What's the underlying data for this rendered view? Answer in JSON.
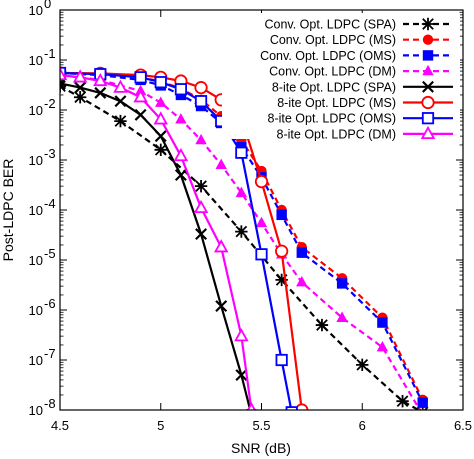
{
  "chart_data": {
    "type": "line",
    "xlabel": "SNR (dB)",
    "ylabel": "Post-LDPC BER",
    "xlim": [
      4.5,
      6.5
    ],
    "ylim": [
      1e-08,
      1
    ],
    "yscale": "log",
    "x_ticks": [
      "4.5",
      "5",
      "5.5",
      "6",
      "6.5"
    ],
    "y_ticks": [
      {
        "base": "10",
        "exp": "-8"
      },
      {
        "base": "10",
        "exp": "-7"
      },
      {
        "base": "10",
        "exp": "-6"
      },
      {
        "base": "10",
        "exp": "-5"
      },
      {
        "base": "10",
        "exp": "-4"
      },
      {
        "base": "10",
        "exp": "-3"
      },
      {
        "base": "10",
        "exp": "-2"
      },
      {
        "base": "10",
        "exp": "-1"
      },
      {
        "base": "10",
        "exp": "0"
      }
    ],
    "grid": false,
    "legend_position": "top-right",
    "series": [
      {
        "name": "Conv. Opt. LDPC (SPA)",
        "color": "#000000",
        "dash": true,
        "marker": "asterisk",
        "x": [
          4.5,
          4.6,
          4.8,
          5.0,
          5.2,
          5.4,
          5.6,
          5.8,
          6.0,
          6.2,
          6.3
        ],
        "y": [
          0.03,
          0.018,
          0.006,
          0.0016,
          0.0003,
          3.7e-05,
          4e-06,
          5e-07,
          8e-08,
          1.5e-08,
          9e-09
        ]
      },
      {
        "name": "Conv. Opt. LDPC (MS)",
        "color": "#ff0000",
        "dash": true,
        "marker": "filled-circle",
        "x": [
          4.5,
          4.7,
          4.9,
          5.0,
          5.1,
          5.2,
          5.3,
          5.4,
          5.5,
          5.6,
          5.7,
          5.9,
          6.1,
          6.3
        ],
        "y": [
          0.055,
          0.052,
          0.045,
          0.037,
          0.027,
          0.016,
          0.0075,
          0.0025,
          0.0006,
          0.0001,
          1.8e-05,
          4.3e-06,
          7e-07,
          1.6e-08
        ]
      },
      {
        "name": "Conv. Opt. LDPC (OMS)",
        "color": "#0000ff",
        "dash": true,
        "marker": "filled-square",
        "x": [
          4.5,
          4.7,
          4.9,
          5.0,
          5.1,
          5.2,
          5.3,
          5.4,
          5.5,
          5.6,
          5.7,
          5.9,
          6.1,
          6.3
        ],
        "y": [
          0.055,
          0.05,
          0.04,
          0.031,
          0.02,
          0.012,
          0.0055,
          0.0018,
          0.00045,
          8e-05,
          1.4e-05,
          3.4e-06,
          5.6e-07,
          1.4e-08
        ]
      },
      {
        "name": "Conv. Opt. LDPC (DM)",
        "color": "#ff00ff",
        "dash": true,
        "marker": "filled-triangle",
        "x": [
          4.5,
          4.7,
          4.9,
          5.0,
          5.1,
          5.2,
          5.3,
          5.4,
          5.5,
          5.6,
          5.7,
          5.9,
          6.1,
          6.3
        ],
        "y": [
          0.05,
          0.04,
          0.024,
          0.014,
          0.0065,
          0.0025,
          0.0008,
          0.00022,
          5.5e-05,
          1.3e-05,
          3.6e-06,
          7e-07,
          1.8e-07,
          8e-09
        ]
      },
      {
        "name": "8-ite Opt. LDPC (SPA)",
        "color": "#000000",
        "dash": false,
        "marker": "x",
        "x": [
          4.5,
          4.6,
          4.7,
          4.8,
          4.9,
          5.0,
          5.1,
          5.2,
          5.3,
          5.4,
          5.45
        ],
        "y": [
          0.034,
          0.028,
          0.022,
          0.015,
          0.008,
          0.003,
          0.0005,
          3.3e-05,
          1.2e-06,
          5e-08,
          8e-09
        ]
      },
      {
        "name": "8-ite Opt. LDPC (MS)",
        "color": "#ff0000",
        "dash": false,
        "marker": "open-circle",
        "x": [
          4.5,
          4.7,
          4.9,
          5.0,
          5.1,
          5.2,
          5.3,
          5.4,
          5.5,
          5.6,
          5.7
        ],
        "y": [
          0.055,
          0.054,
          0.05,
          0.045,
          0.038,
          0.028,
          0.016,
          0.007,
          0.00037,
          1.5e-05,
          1e-08
        ]
      },
      {
        "name": "8-ite Opt. LDPC (OMS)",
        "color": "#0000ff",
        "dash": false,
        "marker": "open-square",
        "x": [
          4.5,
          4.7,
          4.9,
          5.0,
          5.1,
          5.2,
          5.3,
          5.4,
          5.5,
          5.6,
          5.65
        ],
        "y": [
          0.055,
          0.052,
          0.045,
          0.036,
          0.026,
          0.015,
          0.006,
          0.0014,
          1.3e-05,
          1e-07,
          9e-09
        ]
      },
      {
        "name": "8-ite Opt. LDPC (DM)",
        "color": "#ff00ff",
        "dash": false,
        "marker": "open-triangle",
        "x": [
          4.5,
          4.6,
          4.7,
          4.8,
          4.9,
          5.0,
          5.1,
          5.2,
          5.3,
          5.4,
          5.45
        ],
        "y": [
          0.05,
          0.045,
          0.038,
          0.028,
          0.018,
          0.0065,
          0.0012,
          0.00011,
          1.8e-05,
          3e-07,
          1e-08
        ]
      }
    ]
  }
}
